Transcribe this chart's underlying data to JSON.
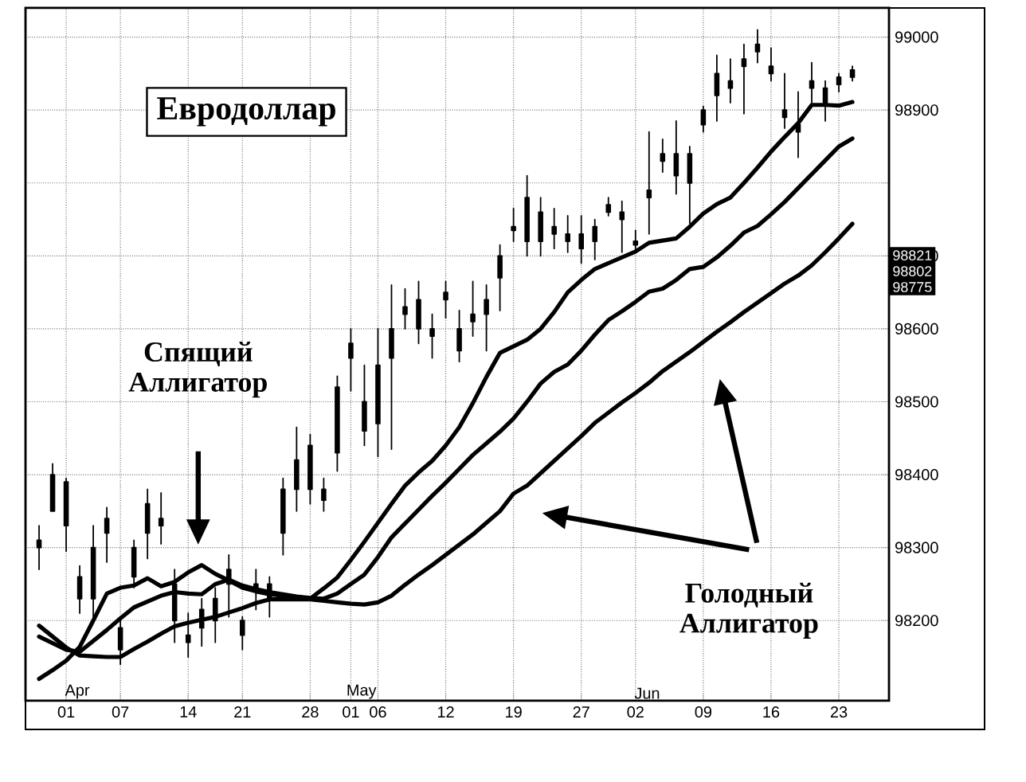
{
  "chart_data": {
    "type": "candlestick",
    "title": "Евродоллар",
    "annotations": [
      "Спящий Аллигатор",
      "Голодный Аллигатор",
      "98821",
      "98802",
      "98775",
      "Apr",
      "May",
      "Jun"
    ],
    "categories": [
      null,
      null,
      "01",
      null,
      null,
      null,
      "07",
      null,
      null,
      null,
      null,
      "14",
      null,
      null,
      null,
      "21",
      null,
      null,
      null,
      null,
      "28",
      null,
      null,
      "01",
      null,
      "06",
      null,
      null,
      null,
      null,
      "12",
      null,
      null,
      null,
      null,
      "19",
      null,
      null,
      null,
      null,
      "27",
      null,
      null,
      null,
      "02",
      null,
      null,
      null,
      null,
      "09",
      null,
      null,
      null,
      null,
      "16",
      null,
      null,
      null,
      null,
      "23",
      null
    ],
    "ohlc": [
      [
        98300,
        98330,
        98270,
        98310
      ],
      [
        98350,
        98415,
        98350,
        98400
      ],
      [
        98390,
        98395,
        98295,
        98330
      ],
      [
        98260,
        98275,
        98210,
        98230
      ],
      [
        98230,
        98330,
        98200,
        98300
      ],
      [
        98320,
        98355,
        98280,
        98340
      ],
      [
        98190,
        98205,
        98140,
        98160
      ],
      [
        98260,
        98310,
        98245,
        98300
      ],
      [
        98320,
        98380,
        98285,
        98360
      ],
      [
        98340,
        98375,
        98305,
        98330
      ],
      [
        98250,
        98270,
        98170,
        98200
      ],
      [
        98180,
        98210,
        98150,
        98170
      ],
      [
        98190,
        98230,
        98165,
        98215
      ],
      [
        98200,
        98245,
        98170,
        98230
      ],
      [
        98250,
        98290,
        98205,
        98270
      ],
      [
        98180,
        98205,
        98160,
        98200
      ],
      [
        98240,
        98270,
        98215,
        98250
      ],
      [
        98230,
        98260,
        98205,
        98250
      ],
      [
        98320,
        98395,
        98290,
        98380
      ],
      [
        98420,
        98465,
        98350,
        98380
      ],
      [
        98380,
        98455,
        98360,
        98440
      ],
      [
        98380,
        98395,
        98350,
        98365
      ],
      [
        98430,
        98535,
        98405,
        98520
      ],
      [
        98560,
        98600,
        98515,
        98580
      ],
      [
        98500,
        98550,
        98440,
        98460
      ],
      [
        98470,
        98600,
        98425,
        98550
      ],
      [
        98560,
        98660,
        98435,
        98600
      ],
      [
        98620,
        98655,
        98600,
        98630
      ],
      [
        98600,
        98665,
        98580,
        98640
      ],
      [
        98590,
        98620,
        98560,
        98600
      ],
      [
        98640,
        98665,
        98615,
        98650
      ],
      [
        98600,
        98625,
        98555,
        98570
      ],
      [
        98610,
        98665,
        98590,
        98620
      ],
      [
        98620,
        98660,
        98570,
        98640
      ],
      [
        98670,
        98715,
        98625,
        98700
      ],
      [
        98740,
        98765,
        98720,
        98735
      ],
      [
        98720,
        98810,
        98700,
        98780
      ],
      [
        98760,
        98780,
        98700,
        98720
      ],
      [
        98730,
        98765,
        98710,
        98740
      ],
      [
        98730,
        98755,
        98705,
        98720
      ],
      [
        98710,
        98755,
        98690,
        98730
      ],
      [
        98720,
        98750,
        98695,
        98740
      ],
      [
        98760,
        98780,
        98755,
        98770
      ],
      [
        98750,
        98775,
        98705,
        98760
      ],
      [
        98720,
        98735,
        98705,
        98715
      ],
      [
        98790,
        98870,
        98730,
        98780
      ],
      [
        98830,
        98860,
        98815,
        98840
      ],
      [
        98840,
        98885,
        98785,
        98810
      ],
      [
        98800,
        98850,
        98745,
        98840
      ],
      [
        98880,
        98905,
        98870,
        98900
      ],
      [
        98920,
        98975,
        98885,
        98950
      ],
      [
        98940,
        98970,
        98910,
        98930
      ],
      [
        98960,
        98990,
        98895,
        98970
      ],
      [
        98980,
        99010,
        98965,
        98990
      ],
      [
        98950,
        98985,
        98940,
        98960
      ],
      [
        98900,
        98950,
        98875,
        98890
      ],
      [
        98880,
        98925,
        98835,
        98870
      ],
      [
        98930,
        98965,
        98910,
        98940
      ],
      [
        98910,
        98940,
        98885,
        98930
      ],
      [
        98935,
        98950,
        98925,
        98945
      ],
      [
        98945,
        98960,
        98940,
        98955
      ]
    ],
    "series": [
      {
        "type": "line",
        "color": "#000000",
        "values": [
          98120,
          98132,
          98145,
          98164,
          98200,
          98237,
          98245,
          98248,
          98258,
          98247,
          98253,
          98266,
          98276,
          98264,
          98255,
          98245,
          98240,
          98236,
          98234,
          98232,
          98230,
          98244,
          98259,
          98283,
          98308,
          98334,
          98360,
          98385,
          98403,
          98419,
          98440,
          98465,
          98498,
          98534,
          98567,
          98576,
          98585,
          98600,
          98623,
          98650,
          98667,
          98682,
          98690,
          98698,
          98706,
          98718,
          98721,
          98724,
          98740,
          98758,
          98771,
          98780,
          98800,
          98821,
          98843,
          98863,
          98882,
          98907,
          98907,
          98906,
          98911
        ]
      },
      {
        "type": "line",
        "color": "#000000",
        "values": [
          98178,
          98169,
          98160,
          98157,
          98172,
          98187,
          98203,
          98218,
          98226,
          98234,
          98239,
          98237,
          98236,
          98250,
          98256,
          98248,
          98243,
          98239,
          98236,
          98233,
          98231,
          98230,
          98237,
          98250,
          98263,
          98287,
          98314,
          98333,
          98352,
          98371,
          98389,
          98408,
          98427,
          98443,
          98459,
          98477,
          98500,
          98525,
          98541,
          98551,
          98570,
          98592,
          98612,
          98624,
          98637,
          98651,
          98655,
          98667,
          98682,
          98685,
          98698,
          98714,
          98732,
          98741,
          98757,
          98774,
          98793,
          98812,
          98831,
          98850,
          98861
        ]
      },
      {
        "type": "line",
        "color": "#000000",
        "values": [
          98193,
          98178,
          98163,
          98152,
          98151,
          98150,
          98150,
          98161,
          98171,
          98182,
          98192,
          98197,
          98201,
          98205,
          98211,
          98217,
          98224,
          98229,
          98229,
          98229,
          98229,
          98227,
          98225,
          98223,
          98222,
          98225,
          98234,
          98249,
          98263,
          98276,
          98290,
          98304,
          98318,
          98334,
          98350,
          98374,
          98385,
          98402,
          98419,
          98436,
          98453,
          98471,
          98485,
          98499,
          98512,
          98526,
          98542,
          98555,
          98568,
          98582,
          98596,
          98609,
          98623,
          98636,
          98649,
          98662,
          98673,
          98687,
          98705,
          98724,
          98744
        ]
      }
    ],
    "ylim": [
      98090,
      99040
    ],
    "yticks": [
      98200,
      98300,
      98400,
      98500,
      98600,
      98700,
      {
        "value": 98800,
        "label": null
      },
      98900,
      99000
    ],
    "grid": true
  }
}
